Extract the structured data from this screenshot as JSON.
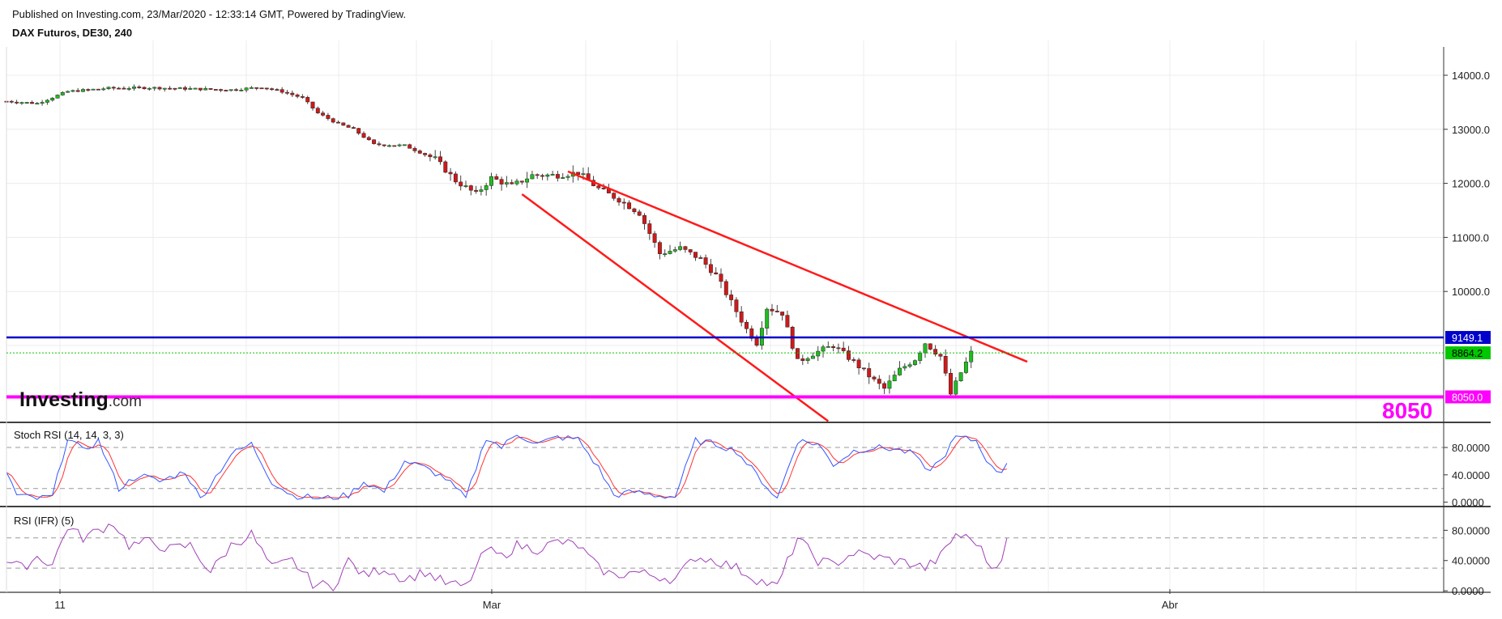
{
  "header": {
    "published": "Published on Investing.com, 23/Mar/2020 - 12:33:14 GMT, Powered by TradingView.",
    "instrument": "DAX Futuros, DE30, 240"
  },
  "logo": {
    "text_bold": "Investing",
    "text_light": ".com"
  },
  "big_label": "8050",
  "colors": {
    "up": "#1fbe1f",
    "down": "#d01919",
    "channel": "#ff1a1a",
    "resistance": "#0000cc",
    "support": "#ff00ff",
    "last_price": "#00c800",
    "stoch_k": "#3355ff",
    "stoch_d": "#ff3333",
    "rsi": "#a040b8"
  },
  "chart_data": [
    {
      "type": "candlestick",
      "title": "DAX Futuros, DE30, 240",
      "x_ticks": [
        "11",
        "Mar",
        "Abr"
      ],
      "y_ticks": [
        "14000.0",
        "13000.0",
        "12000.0",
        "11000.0",
        "10000.0"
      ],
      "ylim": [
        7600,
        14500
      ],
      "grid": true,
      "price_labels": {
        "resistance": "9149.1",
        "last": "8864.2",
        "support": "8050.0"
      },
      "levels": {
        "resistance": 9149.1,
        "last": 8864.2,
        "support": 8050.0
      },
      "channel": {
        "upper": [
          [
            110,
            12220
          ],
          [
            200,
            8700
          ]
        ],
        "lower": [
          [
            101,
            11800
          ],
          [
            161,
            7600
          ]
        ],
        "comment": "x as candle index, y in price"
      },
      "anchors": [
        [
          0,
          13520
        ],
        [
          6,
          13480
        ],
        [
          12,
          13700
        ],
        [
          20,
          13760
        ],
        [
          28,
          13770
        ],
        [
          36,
          13750
        ],
        [
          44,
          13730
        ],
        [
          50,
          13780
        ],
        [
          54,
          13700
        ],
        [
          58,
          13580
        ],
        [
          61,
          13300
        ],
        [
          65,
          13100
        ],
        [
          68,
          13000
        ],
        [
          72,
          12720
        ],
        [
          78,
          12700
        ],
        [
          84,
          12450
        ],
        [
          88,
          12050
        ],
        [
          92,
          11800
        ],
        [
          95,
          12100
        ],
        [
          99,
          11950
        ],
        [
          103,
          12150
        ],
        [
          108,
          12150
        ],
        [
          112,
          12200
        ],
        [
          116,
          11900
        ],
        [
          120,
          11700
        ],
        [
          124,
          11450
        ],
        [
          128,
          10700
        ],
        [
          132,
          10800
        ],
        [
          136,
          10600
        ],
        [
          139,
          10300
        ],
        [
          142,
          9800
        ],
        [
          145,
          9300
        ],
        [
          147,
          9050
        ],
        [
          149,
          9700
        ],
        [
          152,
          9600
        ],
        [
          155,
          8700
        ],
        [
          158,
          8850
        ],
        [
          162,
          9000
        ],
        [
          166,
          8700
        ],
        [
          170,
          8350
        ],
        [
          172,
          8200
        ],
        [
          175,
          8550
        ],
        [
          178,
          8750
        ],
        [
          180,
          9050
        ],
        [
          183,
          8800
        ],
        [
          185,
          8100
        ],
        [
          187,
          8500
        ],
        [
          189,
          8864
        ]
      ]
    },
    {
      "type": "line",
      "title": "Stoch RSI (14, 14, 3, 3)",
      "y_ticks": [
        "80.0000",
        "40.0000",
        "0.0000"
      ],
      "ylim": [
        -4,
        112
      ],
      "bands": [
        80,
        20
      ],
      "series": [
        {
          "name": "",
          "values_k": "computed from price anchors"
        }
      ],
      "anchors_k": [
        [
          0,
          45
        ],
        [
          2,
          10
        ],
        [
          6,
          5
        ],
        [
          9,
          8
        ],
        [
          12,
          95
        ],
        [
          15,
          75
        ],
        [
          18,
          90
        ],
        [
          22,
          20
        ],
        [
          26,
          40
        ],
        [
          30,
          30
        ],
        [
          35,
          45
        ],
        [
          38,
          5
        ],
        [
          44,
          70
        ],
        [
          48,
          85
        ],
        [
          52,
          30
        ],
        [
          56,
          10
        ],
        [
          62,
          5
        ],
        [
          67,
          10
        ],
        [
          70,
          30
        ],
        [
          74,
          15
        ],
        [
          78,
          60
        ],
        [
          82,
          50
        ],
        [
          86,
          35
        ],
        [
          90,
          5
        ],
        [
          94,
          95
        ],
        [
          97,
          80
        ],
        [
          100,
          100
        ],
        [
          104,
          85
        ],
        [
          108,
          95
        ],
        [
          112,
          92
        ],
        [
          116,
          50
        ],
        [
          119,
          10
        ],
        [
          123,
          15
        ],
        [
          127,
          10
        ],
        [
          131,
          8
        ],
        [
          135,
          90
        ],
        [
          139,
          85
        ],
        [
          143,
          75
        ],
        [
          147,
          40
        ],
        [
          151,
          5
        ],
        [
          155,
          90
        ],
        [
          159,
          85
        ],
        [
          162,
          55
        ],
        [
          166,
          75
        ],
        [
          170,
          80
        ],
        [
          174,
          78
        ],
        [
          178,
          70
        ],
        [
          180,
          45
        ],
        [
          183,
          60
        ],
        [
          186,
          95
        ],
        [
          190,
          90
        ],
        [
          193,
          50
        ],
        [
          195,
          45
        ],
        [
          196,
          60
        ]
      ]
    },
    {
      "type": "line",
      "title": "RSI (IFR) (5)",
      "y_ticks": [
        "80.0000",
        "40.0000",
        "0.0000"
      ],
      "ylim": [
        -2,
        105
      ],
      "bands": [
        70,
        30
      ],
      "anchors": [
        [
          0,
          40
        ],
        [
          3,
          30
        ],
        [
          6,
          45
        ],
        [
          9,
          35
        ],
        [
          12,
          85
        ],
        [
          15,
          70
        ],
        [
          18,
          80
        ],
        [
          21,
          90
        ],
        [
          24,
          60
        ],
        [
          28,
          65
        ],
        [
          32,
          55
        ],
        [
          36,
          60
        ],
        [
          40,
          25
        ],
        [
          44,
          60
        ],
        [
          48,
          75
        ],
        [
          52,
          30
        ],
        [
          56,
          40
        ],
        [
          60,
          10
        ],
        [
          64,
          5
        ],
        [
          67,
          40
        ],
        [
          70,
          20
        ],
        [
          74,
          30
        ],
        [
          78,
          15
        ],
        [
          82,
          25
        ],
        [
          86,
          10
        ],
        [
          90,
          5
        ],
        [
          94,
          55
        ],
        [
          97,
          45
        ],
        [
          100,
          60
        ],
        [
          104,
          55
        ],
        [
          108,
          65
        ],
        [
          112,
          60
        ],
        [
          116,
          30
        ],
        [
          119,
          20
        ],
        [
          123,
          25
        ],
        [
          127,
          20
        ],
        [
          131,
          15
        ],
        [
          135,
          45
        ],
        [
          139,
          40
        ],
        [
          143,
          30
        ],
        [
          147,
          15
        ],
        [
          151,
          5
        ],
        [
          155,
          70
        ],
        [
          159,
          40
        ],
        [
          162,
          35
        ],
        [
          166,
          50
        ],
        [
          170,
          45
        ],
        [
          174,
          40
        ],
        [
          178,
          35
        ],
        [
          180,
          30
        ],
        [
          183,
          45
        ],
        [
          186,
          75
        ],
        [
          190,
          65
        ],
        [
          193,
          30
        ],
        [
          195,
          45
        ],
        [
          196,
          65
        ]
      ]
    }
  ]
}
